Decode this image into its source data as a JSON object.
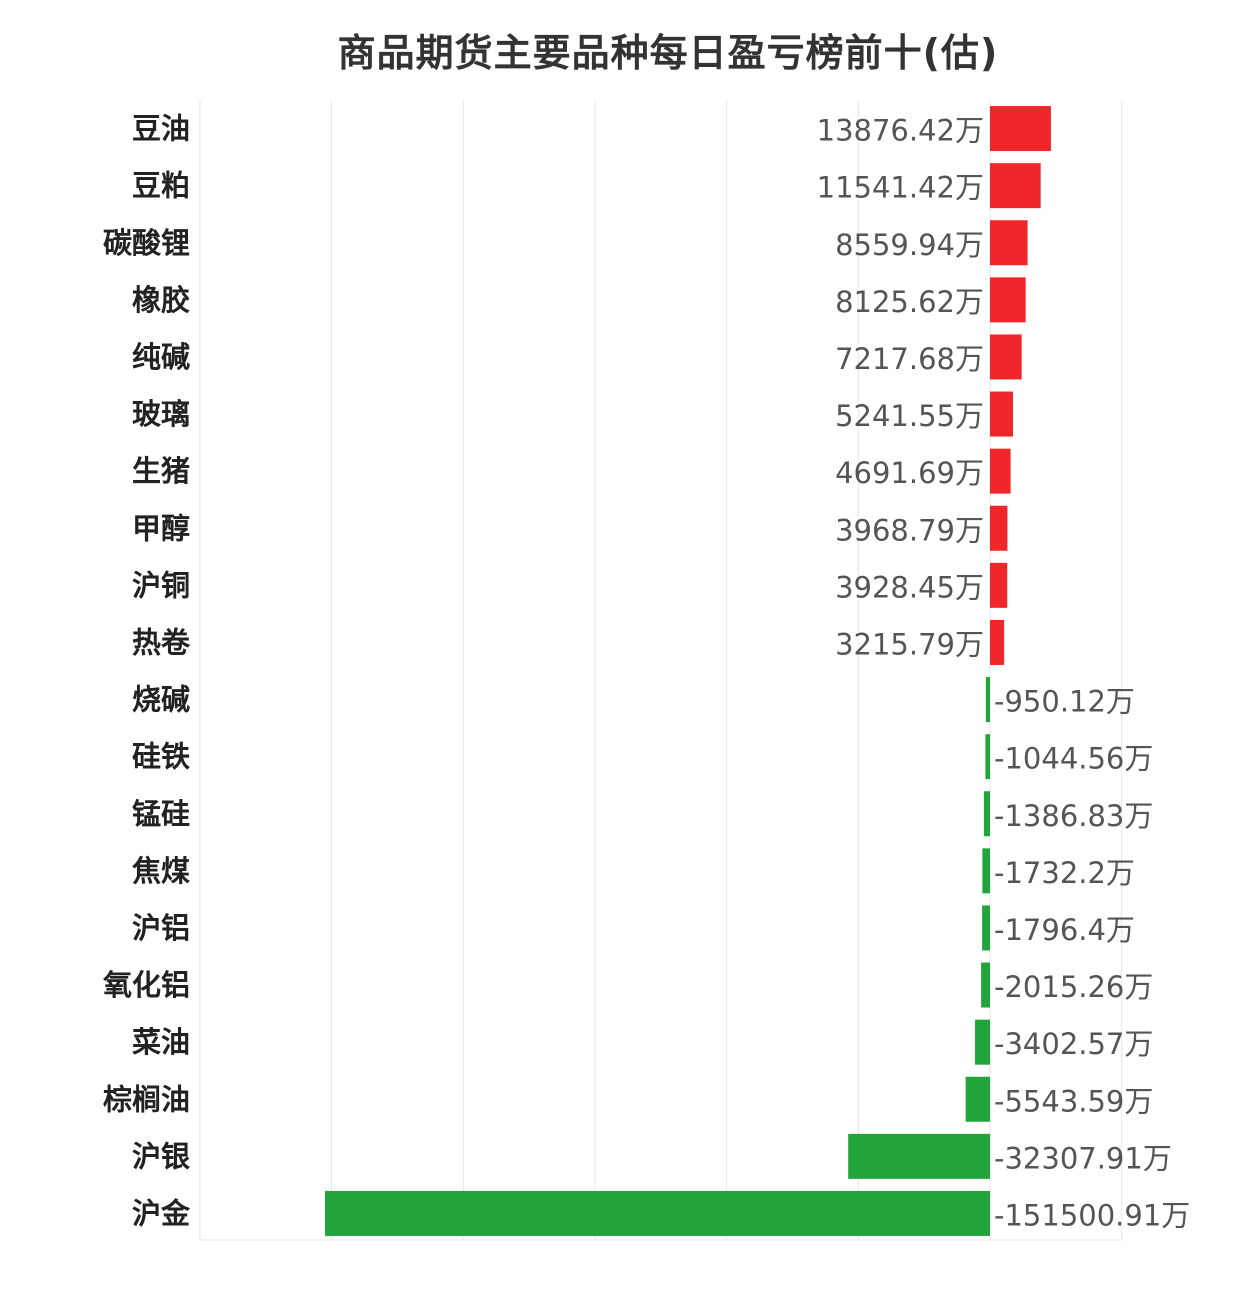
{
  "chart_data": {
    "type": "bar",
    "orientation": "horizontal",
    "title": "商品期货主要品种每日盈亏榜前十(估)",
    "unit": "万",
    "grid": true,
    "colors": {
      "positive": "#f0262a",
      "negative": "#21a53b"
    },
    "categories": [
      "豆油",
      "豆粕",
      "碳酸锂",
      "橡胶",
      "纯碱",
      "玻璃",
      "生猪",
      "甲醇",
      "沪铜",
      "热卷",
      "烧碱",
      "硅铁",
      "锰硅",
      "焦煤",
      "沪铝",
      "氧化铝",
      "菜油",
      "棕榈油",
      "沪银",
      "沪金"
    ],
    "values": [
      13876.42,
      11541.42,
      8559.94,
      8125.62,
      7217.68,
      5241.55,
      4691.69,
      3968.79,
      3928.45,
      3215.79,
      -950.12,
      -1044.56,
      -1386.83,
      -1732.2,
      -1796.4,
      -2015.26,
      -3402.57,
      -5543.59,
      -32307.91,
      -151500.91
    ],
    "labels": [
      "13876.42万",
      "11541.42万",
      "8559.94万",
      "8125.62万",
      "7217.68万",
      "5241.55万",
      "4691.69万",
      "3968.79万",
      "3928.45万",
      "3215.79万",
      "-950.12万",
      "-1044.56万",
      "-1386.83万",
      "-1732.2万",
      "-1796.4万",
      "-2015.26万",
      "-3402.57万",
      "-5543.59万",
      "-32307.91万",
      "-151500.91万"
    ],
    "xlim": [
      -180000,
      30000
    ]
  }
}
